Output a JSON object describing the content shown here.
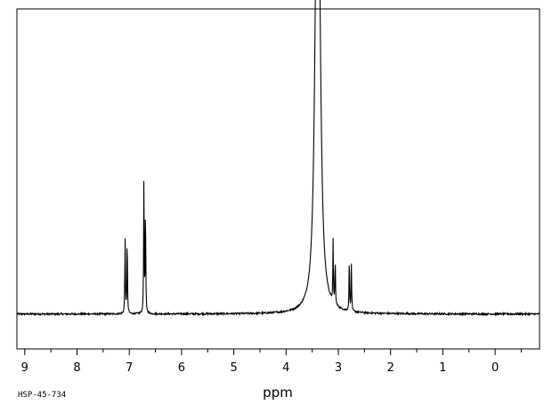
{
  "chart_data": {
    "type": "line",
    "xlabel": "ppm",
    "xlim": [
      9.15,
      -0.85
    ],
    "ylim": [
      -0.12,
      1.05
    ],
    "x_reversed": true,
    "grid": false,
    "x_ticks": [
      9,
      8,
      7,
      6,
      5,
      4,
      3,
      2,
      1,
      0
    ],
    "x_tick_labels": [
      "9",
      "8",
      "7",
      "6",
      "5",
      "4",
      "3",
      "2",
      "1",
      "0"
    ],
    "peaks": [
      {
        "center": 7.08,
        "height": 0.27,
        "width": 0.006
      },
      {
        "center": 7.04,
        "height": 0.27,
        "width": 0.006
      },
      {
        "center": 6.72,
        "height": 0.47,
        "width": 0.006
      },
      {
        "center": 6.69,
        "height": 0.37,
        "width": 0.006
      },
      {
        "center": 3.42,
        "height": 0.97,
        "width": 0.045
      },
      {
        "center": 3.37,
        "height": 0.96,
        "width": 0.045
      },
      {
        "center": 3.1,
        "height": 0.21,
        "width": 0.006
      },
      {
        "center": 3.06,
        "height": 0.16,
        "width": 0.006
      },
      {
        "center": 2.79,
        "height": 0.19,
        "width": 0.006
      },
      {
        "center": 2.75,
        "height": 0.16,
        "width": 0.006
      }
    ],
    "colors": {
      "line": "#000000",
      "background": "#ffffff"
    }
  },
  "footer": {
    "code": "HSP-45-734"
  }
}
